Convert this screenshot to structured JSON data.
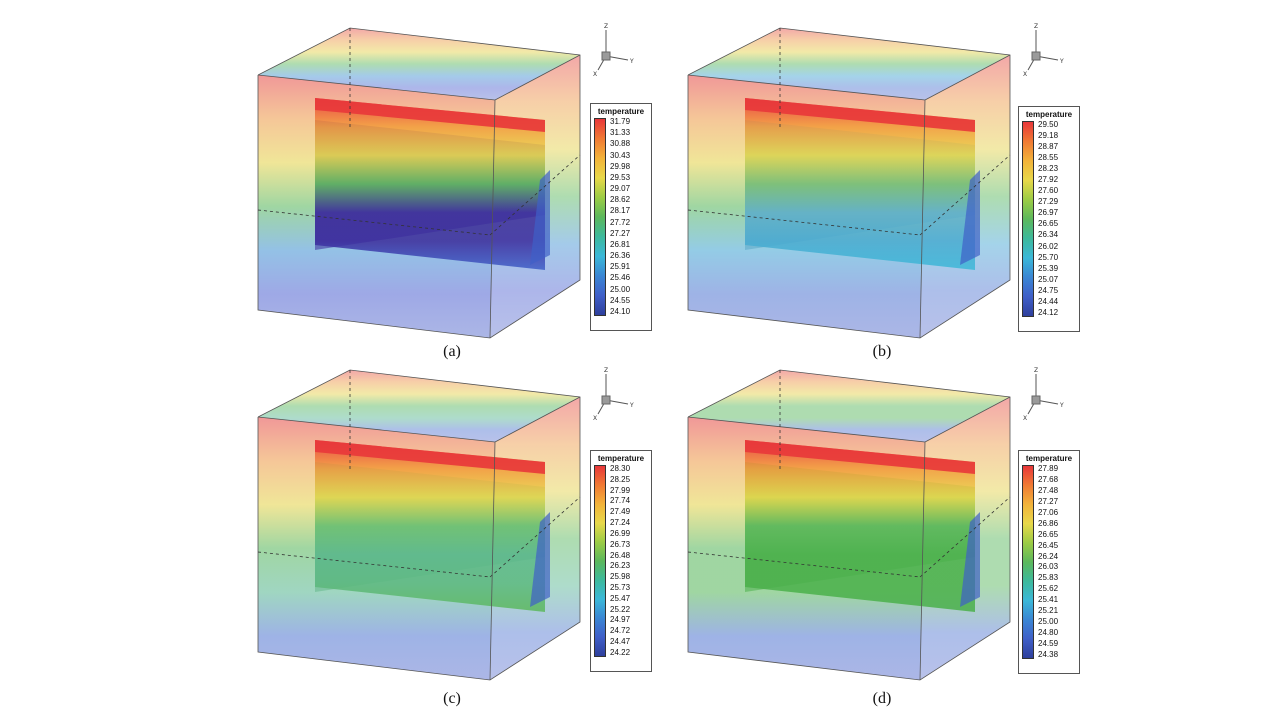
{
  "legend_title": "temperature",
  "panels": [
    {
      "caption": "(a)",
      "ticks": [
        "31.79",
        "31.33",
        "30.88",
        "30.43",
        "29.98",
        "29.53",
        "29.07",
        "28.62",
        "28.17",
        "27.72",
        "27.27",
        "26.81",
        "26.36",
        "25.91",
        "25.46",
        "25.00",
        "24.55",
        "24.10"
      ],
      "palette": "a"
    },
    {
      "caption": "(b)",
      "ticks": [
        "29.50",
        "29.18",
        "28.87",
        "28.55",
        "28.23",
        "27.92",
        "27.60",
        "27.29",
        "26.97",
        "26.65",
        "26.34",
        "26.02",
        "25.70",
        "25.39",
        "25.07",
        "24.75",
        "24.44",
        "24.12"
      ],
      "palette": "b"
    },
    {
      "caption": "(c)",
      "ticks": [
        "28.30",
        "28.25",
        "27.99",
        "27.74",
        "27.49",
        "27.24",
        "26.99",
        "26.73",
        "26.48",
        "26.23",
        "25.98",
        "25.73",
        "25.47",
        "25.22",
        "24.97",
        "24.72",
        "24.47",
        "24.22"
      ],
      "palette": "c"
    },
    {
      "caption": "(d)",
      "ticks": [
        "27.89",
        "27.68",
        "27.48",
        "27.27",
        "27.06",
        "26.86",
        "26.65",
        "26.45",
        "26.24",
        "26.03",
        "25.83",
        "25.62",
        "25.41",
        "25.21",
        "25.00",
        "24.80",
        "24.59",
        "24.38"
      ],
      "palette": "d"
    }
  ],
  "axis_labels": {
    "z": "Z",
    "y": "Y",
    "x": "X"
  },
  "colors": {
    "hot": "#e8373a",
    "warm": "#f29a3a",
    "yellow": "#e8d84a",
    "green": "#5cb85c",
    "cyan": "#3bb8d8",
    "blue": "#3f5fc8",
    "deep": "#3b2a9c",
    "bottom": "#7f8fd8"
  }
}
